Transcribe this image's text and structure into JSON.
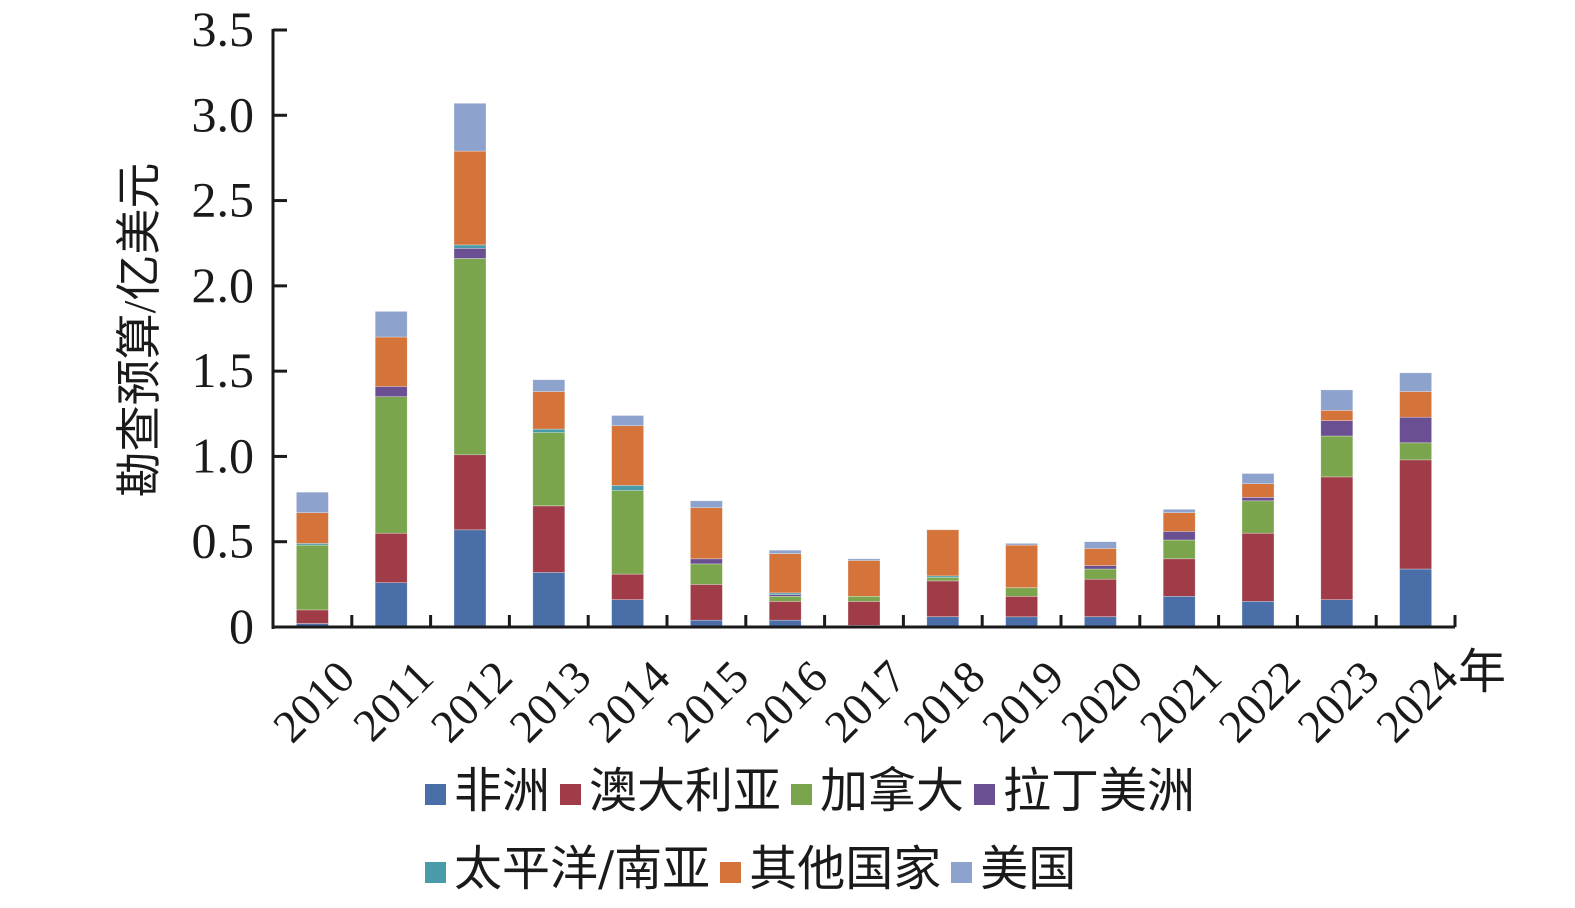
{
  "chart_data": {
    "type": "bar",
    "stacked": true,
    "title": "",
    "xlabel": "年",
    "ylabel": "勘查预算/亿美元",
    "ylim": [
      0,
      3.5
    ],
    "yticks": [
      0,
      0.5,
      1.0,
      1.5,
      2.0,
      2.5,
      3.0,
      3.5
    ],
    "ytick_labels": [
      "0",
      "0.5",
      "1.0",
      "1.5",
      "2.0",
      "2.5",
      "3.0",
      "3.5"
    ],
    "grid": false,
    "legend_position": "bottom",
    "categories": [
      "2010",
      "2011",
      "2012",
      "2013",
      "2014",
      "2015",
      "2016",
      "2017",
      "2018",
      "2019",
      "2020",
      "2021",
      "2022",
      "2023",
      "2024"
    ],
    "series": [
      {
        "name": "非洲",
        "color": "#4A6EA8",
        "values": [
          0.02,
          0.26,
          0.57,
          0.32,
          0.16,
          0.04,
          0.04,
          0.01,
          0.06,
          0.06,
          0.06,
          0.18,
          0.15,
          0.16,
          0.34
        ]
      },
      {
        "name": "澳大利亚",
        "color": "#A03C48",
        "values": [
          0.08,
          0.29,
          0.44,
          0.39,
          0.15,
          0.21,
          0.11,
          0.14,
          0.21,
          0.12,
          0.22,
          0.22,
          0.4,
          0.72,
          0.64
        ]
      },
      {
        "name": "加拿大",
        "color": "#7AA54C",
        "values": [
          0.38,
          0.8,
          1.15,
          0.43,
          0.49,
          0.12,
          0.03,
          0.03,
          0.02,
          0.05,
          0.06,
          0.11,
          0.19,
          0.24,
          0.1
        ]
      },
      {
        "name": "拉丁美洲",
        "color": "#6A4F92",
        "values": [
          0.0,
          0.06,
          0.06,
          0.0,
          0.0,
          0.03,
          0.01,
          0.0,
          0.0,
          0.0,
          0.02,
          0.05,
          0.02,
          0.09,
          0.15
        ]
      },
      {
        "name": "太平洋/南亚",
        "color": "#4A9BAA",
        "values": [
          0.01,
          0.0,
          0.02,
          0.02,
          0.03,
          0.0,
          0.01,
          0.0,
          0.01,
          0.0,
          0.0,
          0.0,
          0.0,
          0.0,
          0.0
        ]
      },
      {
        "name": "其他国家",
        "color": "#D4733A",
        "values": [
          0.18,
          0.29,
          0.55,
          0.22,
          0.35,
          0.3,
          0.23,
          0.21,
          0.27,
          0.25,
          0.1,
          0.11,
          0.08,
          0.06,
          0.15
        ]
      },
      {
        "name": "美国",
        "color": "#8DA2CC",
        "values": [
          0.12,
          0.15,
          0.28,
          0.07,
          0.06,
          0.04,
          0.02,
          0.01,
          0.0,
          0.01,
          0.04,
          0.02,
          0.06,
          0.12,
          0.11
        ]
      }
    ]
  },
  "legend": {
    "rows": [
      [
        0,
        1,
        2,
        3
      ],
      [
        4,
        5,
        6
      ]
    ]
  }
}
